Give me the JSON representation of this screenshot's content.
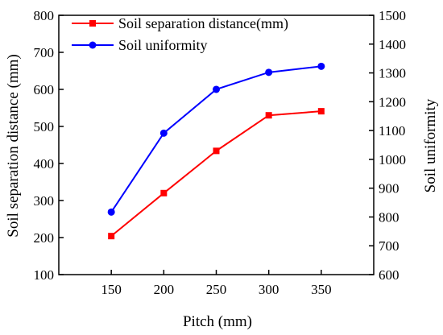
{
  "chart_data": {
    "type": "line",
    "x": [
      150,
      200,
      250,
      300,
      350
    ],
    "xlabel": "Pitch (mm)",
    "xlim": [
      100,
      400
    ],
    "xticks": [
      150,
      200,
      250,
      300,
      350
    ],
    "left_axis": {
      "label": "Soil separation distance (mm)",
      "ylim": [
        100,
        800
      ],
      "ticks": [
        100,
        200,
        300,
        400,
        500,
        600,
        700,
        800
      ]
    },
    "right_axis": {
      "label": "Soil uniformity",
      "ylim": [
        600,
        1500
      ],
      "ticks": [
        600,
        700,
        800,
        900,
        1000,
        1100,
        1200,
        1300,
        1400,
        1500
      ]
    },
    "series": [
      {
        "name": "Soil separation distance(mm)",
        "axis": "left",
        "color": "#ff0000",
        "marker": "square",
        "values": [
          204,
          320,
          434,
          530,
          541
        ]
      },
      {
        "name": "Soil uniformity",
        "axis": "right",
        "color": "#0000ff",
        "marker": "circle",
        "values": [
          817,
          1091,
          1243,
          1302,
          1323
        ]
      }
    ],
    "legend_position": "top-left",
    "grid": false
  }
}
